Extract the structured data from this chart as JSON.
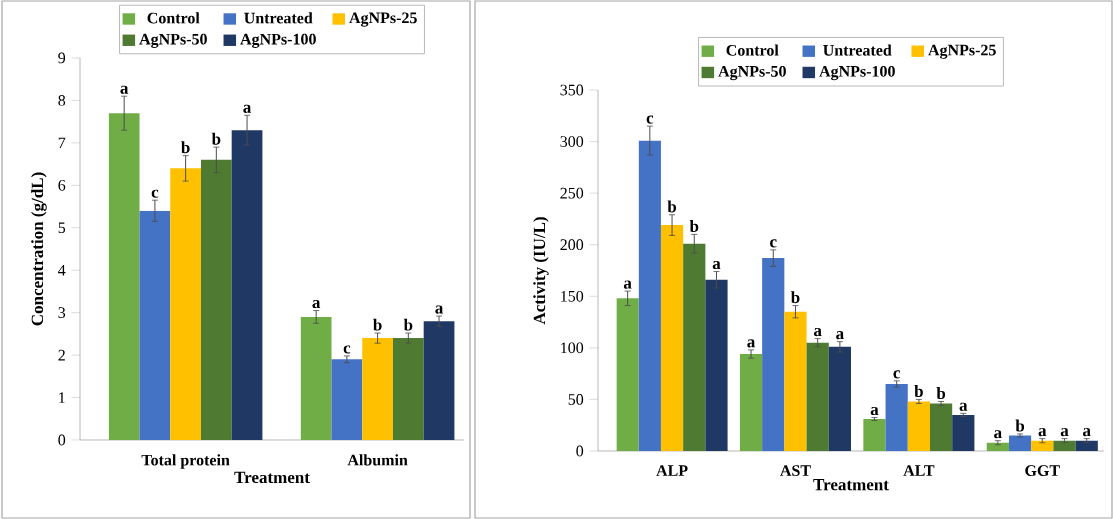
{
  "chart_data": [
    {
      "type": "bar",
      "xlabel": "Treatment",
      "ylabel": "Concentration (g/dL)",
      "categories": [
        "Total protein",
        "Albumin"
      ],
      "ylim": [
        0,
        9
      ],
      "yticks": [
        0,
        1,
        2,
        3,
        4,
        5,
        6,
        7,
        8,
        9
      ],
      "legend": "top",
      "series": [
        {
          "name": "Control",
          "color": "#70ad47",
          "values": [
            7.7,
            2.9
          ],
          "errors": [
            0.4,
            0.15
          ],
          "value_labels": [
            "a",
            "a"
          ]
        },
        {
          "name": "Untreated",
          "color": "#4472c4",
          "values": [
            5.4,
            1.9
          ],
          "errors": [
            0.25,
            0.08
          ],
          "value_labels": [
            "c",
            "c"
          ]
        },
        {
          "name": "AgNPs-25",
          "color": "#ffc000",
          "values": [
            6.4,
            2.4
          ],
          "errors": [
            0.3,
            0.12
          ],
          "value_labels": [
            "b",
            "b"
          ]
        },
        {
          "name": "AgNPs-50",
          "color": "#4e7a32",
          "values": [
            6.6,
            2.4
          ],
          "errors": [
            0.3,
            0.12
          ],
          "value_labels": [
            "b",
            "b"
          ]
        },
        {
          "name": "AgNPs-100",
          "color": "#203864",
          "values": [
            7.3,
            2.8
          ],
          "errors": [
            0.35,
            0.12
          ],
          "value_labels": [
            "a",
            "a"
          ]
        }
      ]
    },
    {
      "type": "bar",
      "xlabel": "Treatment",
      "ylabel": "Activity (IU/L)",
      "categories": [
        "ALP",
        "AST",
        "ALT",
        "GGT"
      ],
      "ylim": [
        0,
        350
      ],
      "yticks": [
        0,
        50,
        100,
        150,
        200,
        250,
        300,
        350
      ],
      "legend": "top",
      "series": [
        {
          "name": "Control",
          "color": "#70ad47",
          "values": [
            148,
            94,
            31,
            8
          ],
          "errors": [
            7,
            4,
            1.5,
            2
          ],
          "value_labels": [
            "a",
            "a",
            "a",
            "a"
          ]
        },
        {
          "name": "Untreated",
          "color": "#4472c4",
          "values": [
            301,
            187,
            65,
            15
          ],
          "errors": [
            14,
            8,
            3,
            1.5
          ],
          "value_labels": [
            "c",
            "c",
            "c",
            "b"
          ]
        },
        {
          "name": "AgNPs-25",
          "color": "#ffc000",
          "values": [
            219,
            135,
            48,
            10
          ],
          "errors": [
            10,
            6,
            2,
            2
          ],
          "value_labels": [
            "b",
            "b",
            "b",
            "a"
          ]
        },
        {
          "name": "AgNPs-50",
          "color": "#4e7a32",
          "values": [
            201,
            105,
            46,
            10
          ],
          "errors": [
            9,
            4,
            2,
            2
          ],
          "value_labels": [
            "b",
            "a",
            "b",
            "a"
          ]
        },
        {
          "name": "AgNPs-100",
          "color": "#203864",
          "values": [
            166,
            101,
            35,
            10
          ],
          "errors": [
            8,
            5,
            1.5,
            2
          ],
          "value_labels": [
            "a",
            "a",
            "a",
            "a"
          ]
        }
      ]
    }
  ]
}
